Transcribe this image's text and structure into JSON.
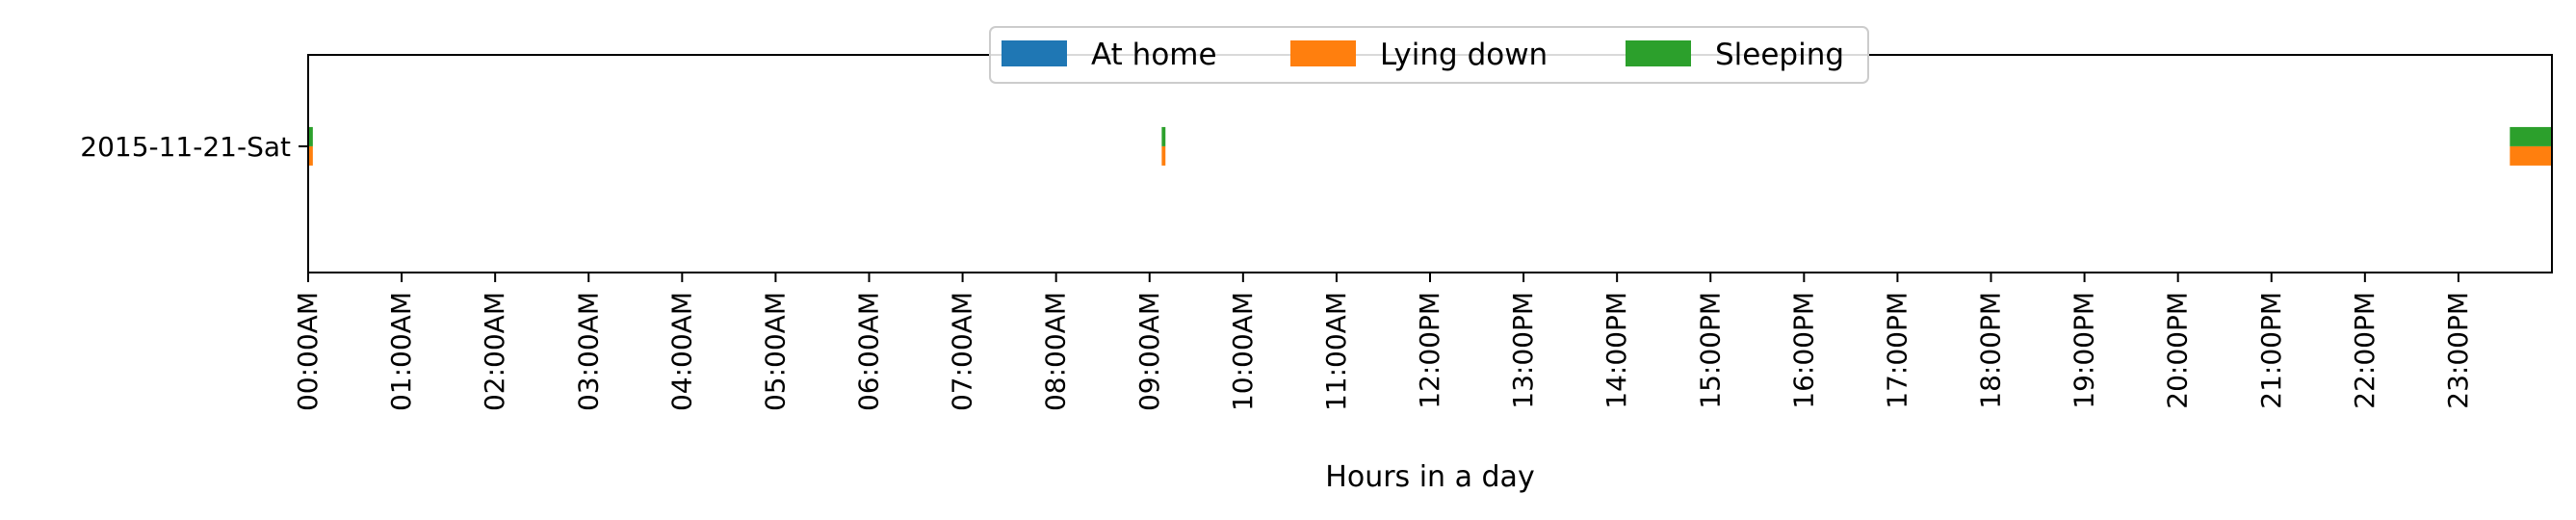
{
  "chart_data": {
    "type": "bar",
    "orientation": "horizontal-timeline",
    "title": "",
    "xlabel": "Hours in a day",
    "ylabel": "",
    "xlim": [
      0,
      24
    ],
    "x_tick_labels": [
      "00:00AM",
      "01:00AM",
      "02:00AM",
      "03:00AM",
      "04:00AM",
      "05:00AM",
      "06:00AM",
      "07:00AM",
      "08:00AM",
      "09:00AM",
      "10:00AM",
      "11:00AM",
      "12:00PM",
      "13:00PM",
      "14:00PM",
      "15:00PM",
      "16:00PM",
      "17:00PM",
      "18:00PM",
      "19:00PM",
      "20:00PM",
      "21:00PM",
      "22:00PM",
      "23:00PM"
    ],
    "categories": [
      "2015-11-21-Sat"
    ],
    "legend_position": "top-center",
    "grid": false,
    "series": [
      {
        "name": "At home",
        "color": "#1f77b4",
        "band": "top",
        "intervals": []
      },
      {
        "name": "Lying down",
        "color": "#ff7f0e",
        "band": "bottom",
        "intervals": [
          [
            0.0,
            0.05
          ],
          [
            9.13,
            9.17
          ],
          [
            23.55,
            24.0
          ]
        ]
      },
      {
        "name": "Sleeping",
        "color": "#2ca02c",
        "band": "top",
        "intervals": [
          [
            0.0,
            0.05
          ],
          [
            9.13,
            9.17
          ],
          [
            23.55,
            24.0
          ]
        ]
      }
    ]
  }
}
